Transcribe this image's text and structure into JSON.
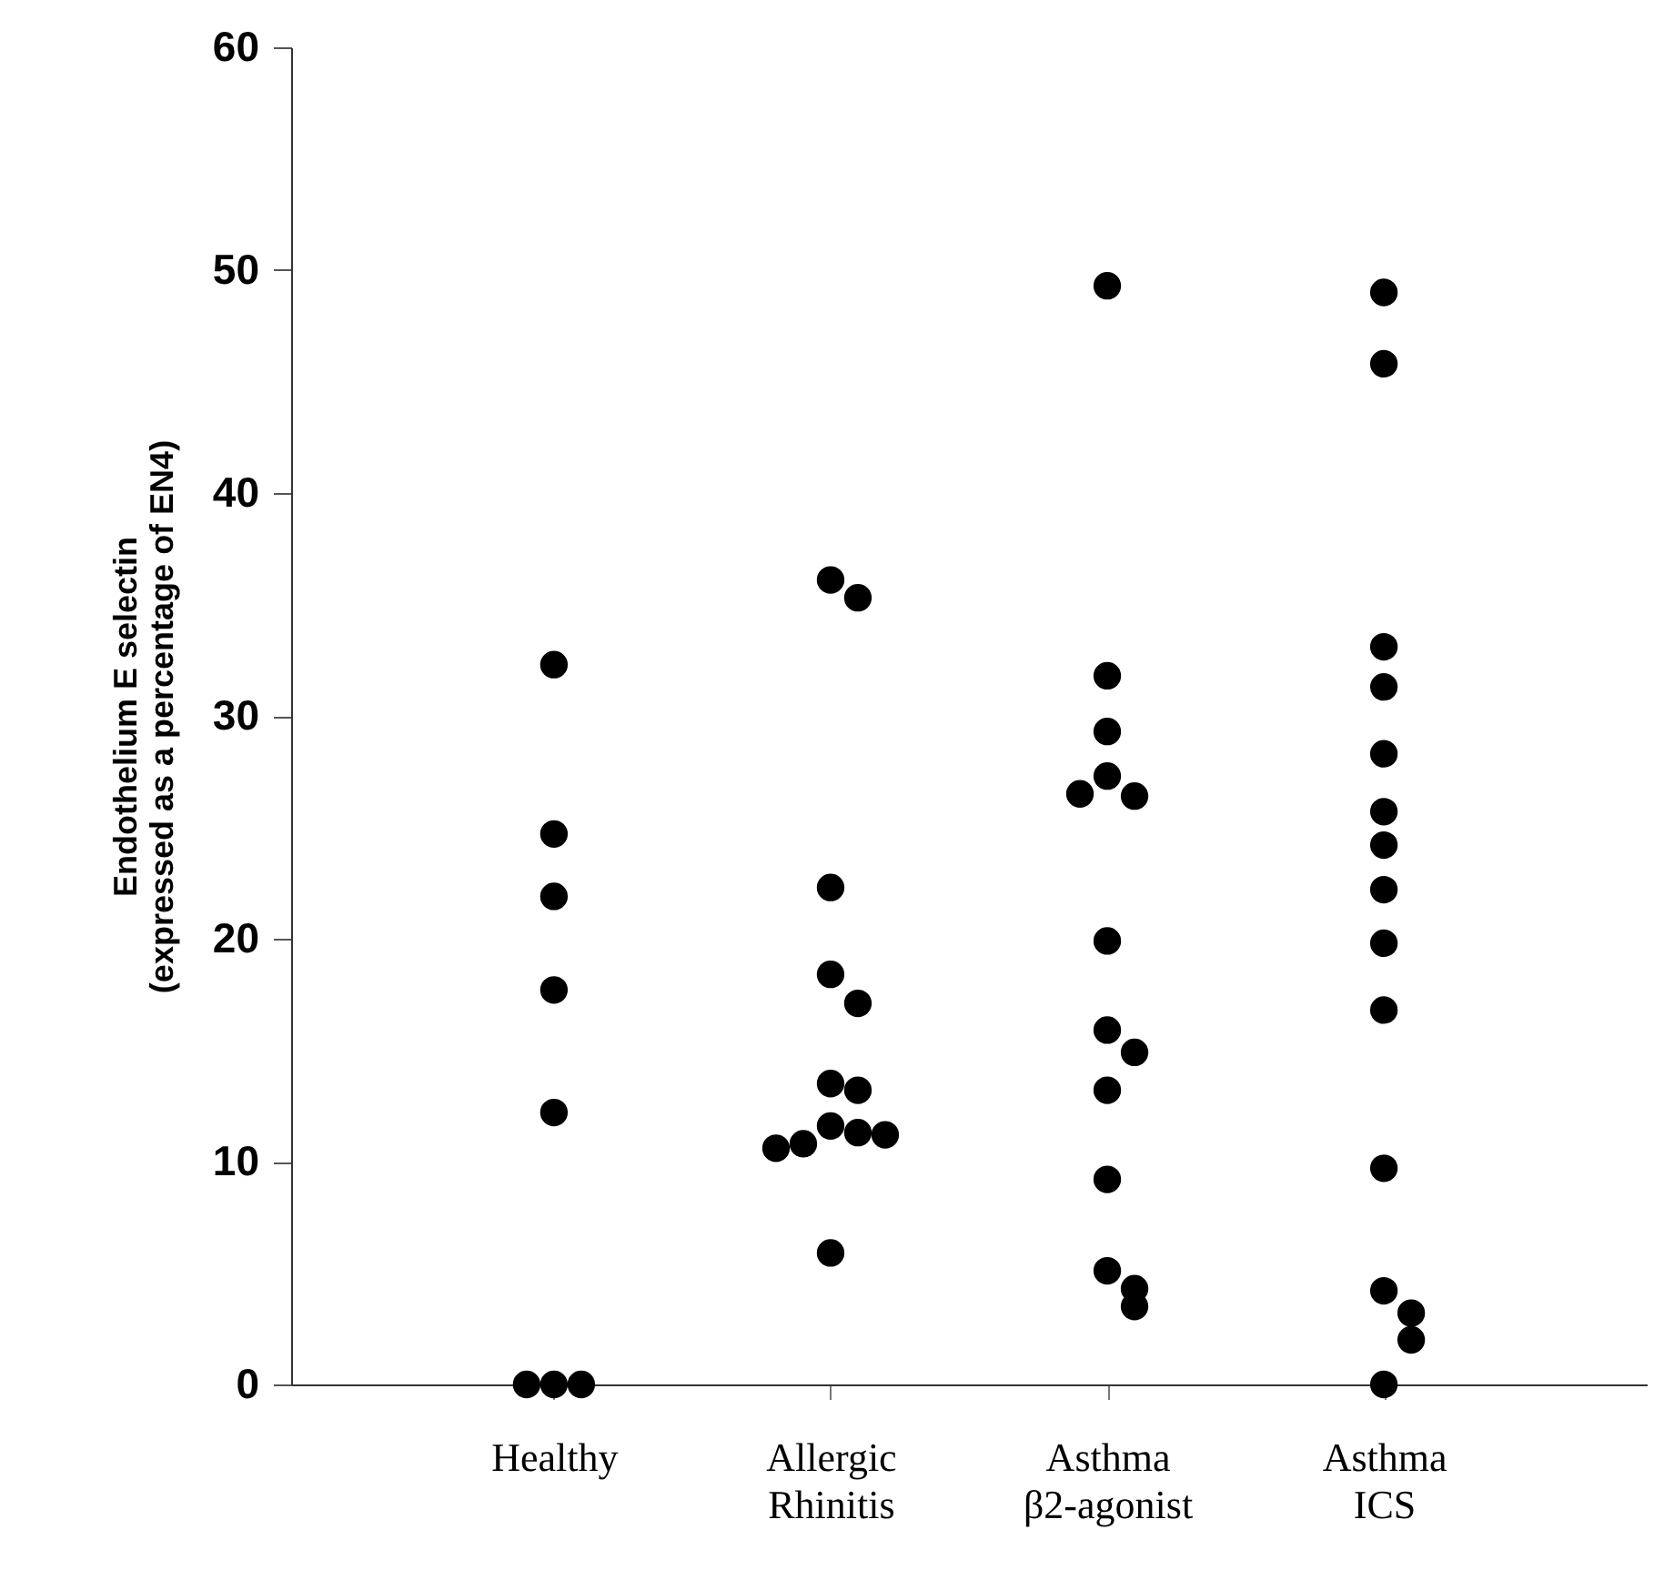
{
  "chart_data": {
    "type": "scatter",
    "ylabel": "Endothelium E selectin\n(expressed as a percentage of EN4)",
    "categories": [
      "Healthy",
      "Allergic\nRhinitis",
      "Asthma\nβ2-agonist",
      "Asthma\nICS"
    ],
    "series": [
      {
        "color": "#000000",
        "x": [
          "Healthy",
          "Healthy",
          "Healthy",
          "Healthy",
          "Healthy",
          "Healthy",
          "Healthy",
          "Healthy",
          "Allergic\nRhinitis",
          "Allergic\nRhinitis",
          "Allergic\nRhinitis",
          "Allergic\nRhinitis",
          "Allergic\nRhinitis",
          "Allergic\nRhinitis",
          "Allergic\nRhinitis",
          "Allergic\nRhinitis",
          "Allergic\nRhinitis",
          "Allergic\nRhinitis",
          "Allergic\nRhinitis",
          "Allergic\nRhinitis",
          "Allergic\nRhinitis",
          "Asthma\nβ2-agonist",
          "Asthma\nβ2-agonist",
          "Asthma\nβ2-agonist",
          "Asthma\nβ2-agonist",
          "Asthma\nβ2-agonist",
          "Asthma\nβ2-agonist",
          "Asthma\nβ2-agonist",
          "Asthma\nβ2-agonist",
          "Asthma\nβ2-agonist",
          "Asthma\nβ2-agonist",
          "Asthma\nβ2-agonist",
          "Asthma\nβ2-agonist",
          "Asthma\nβ2-agonist",
          "Asthma\nβ2-agonist",
          "Asthma\nICS",
          "Asthma\nICS",
          "Asthma\nICS",
          "Asthma\nICS",
          "Asthma\nICS",
          "Asthma\nICS",
          "Asthma\nICS",
          "Asthma\nICS",
          "Asthma\nICS",
          "Asthma\nICS",
          "Asthma\nICS",
          "Asthma\nICS",
          "Asthma\nICS",
          "Asthma\nICS",
          "Asthma\nICS"
        ],
        "values": [
          32.3,
          24.7,
          21.9,
          17.7,
          12.2,
          0,
          0,
          0,
          36.1,
          35.3,
          22.3,
          18.4,
          17.1,
          13.5,
          13.2,
          11.6,
          11.3,
          10.8,
          11.2,
          10.6,
          5.9,
          49.3,
          31.8,
          29.3,
          27.3,
          26.4,
          26.5,
          19.9,
          15.9,
          14.9,
          13.2,
          9.2,
          5.1,
          4.3,
          3.5,
          49.0,
          45.8,
          33.1,
          31.3,
          28.3,
          25.7,
          24.2,
          22.2,
          19.8,
          16.8,
          9.7,
          4.2,
          3.2,
          2.0,
          0
        ]
      }
    ],
    "ylim": [
      0,
      60
    ],
    "yticks": [
      0,
      10,
      20,
      30,
      40,
      50,
      60
    ],
    "marker": "circle",
    "grid": false
  }
}
